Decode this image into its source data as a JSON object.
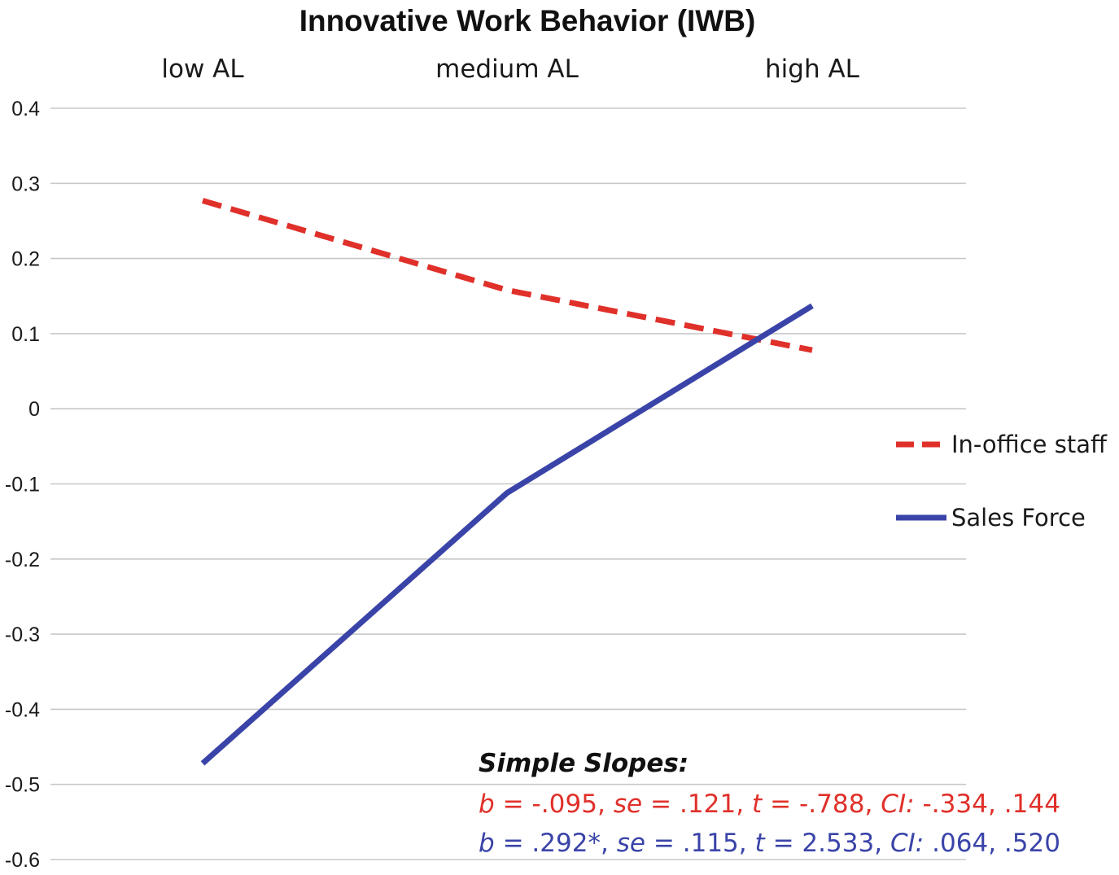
{
  "chart_data": {
    "type": "line",
    "title": "Innovative Work Behavior (IWB)",
    "categories": [
      "low AL",
      "medium AL",
      "high AL"
    ],
    "ylim": [
      -0.6,
      0.4
    ],
    "yticks": [
      "0.4",
      "0.3",
      "0.2",
      "0.1",
      "0",
      "-0.1",
      "-0.2",
      "-0.3",
      "-0.4",
      "-0.5",
      "-0.6"
    ],
    "ytick_values": [
      0.4,
      0.3,
      0.2,
      0.1,
      0,
      -0.1,
      -0.2,
      -0.3,
      -0.4,
      -0.5,
      -0.6
    ],
    "grid": true,
    "legend_position": "right",
    "series": [
      {
        "name": "In-office staff",
        "values": [
          0.277,
          0.158,
          0.078
        ],
        "color": "#e0302a",
        "style": "dashed"
      },
      {
        "name": "Sales Force",
        "values": [
          -0.472,
          -0.112,
          0.137
        ],
        "color": "#3a44a8",
        "style": "solid"
      }
    ],
    "annotation": {
      "heading": "Simple Slopes:",
      "lines": [
        {
          "color": "#e0302a",
          "runs": [
            {
              "text": "b",
              "italic": true
            },
            {
              "text": " = -.095, ",
              "italic": false
            },
            {
              "text": "se",
              "italic": true
            },
            {
              "text": " = .121, ",
              "italic": false
            },
            {
              "text": "t",
              "italic": true
            },
            {
              "text": " = -.788, ",
              "italic": false
            },
            {
              "text": "CI:",
              "italic": true
            },
            {
              "text": " -.334, .144",
              "italic": false
            }
          ]
        },
        {
          "color": "#3a44a8",
          "runs": [
            {
              "text": "b",
              "italic": true
            },
            {
              "text": " = .292*, ",
              "italic": false
            },
            {
              "text": "se",
              "italic": true
            },
            {
              "text": " = .115, ",
              "italic": false
            },
            {
              "text": "t",
              "italic": true
            },
            {
              "text": " = 2.533, ",
              "italic": false
            },
            {
              "text": "CI:",
              "italic": true
            },
            {
              "text": " .064, .520",
              "italic": false
            }
          ]
        }
      ]
    }
  }
}
